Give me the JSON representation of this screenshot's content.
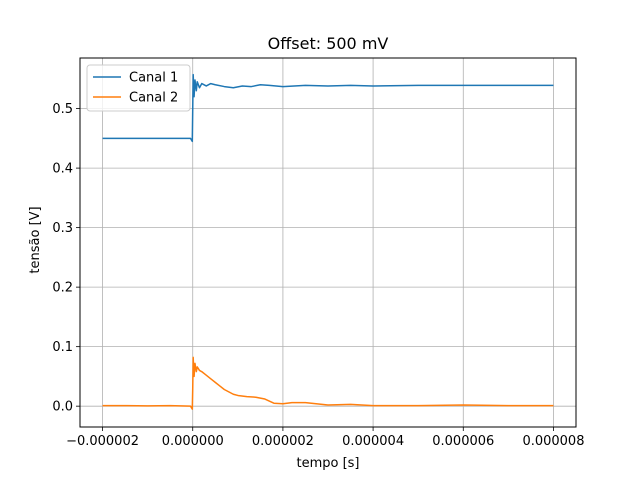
{
  "chart_data": {
    "type": "line",
    "title": "Offset: 500 mV",
    "xlabel": "tempo [s]",
    "ylabel": "tensão [V]",
    "xlim": [
      -2.5e-06,
      8.5e-06
    ],
    "ylim": [
      -0.035,
      0.585
    ],
    "xticks": [
      -2e-06,
      0.0,
      2e-06,
      4e-06,
      6e-06,
      8e-06
    ],
    "xtick_labels": [
      "−0.000002",
      "0.000000",
      "0.000002",
      "0.000004",
      "0.000006",
      "0.000008"
    ],
    "yticks": [
      0.0,
      0.1,
      0.2,
      0.3,
      0.4,
      0.5
    ],
    "ytick_labels": [
      "0.0",
      "0.1",
      "0.2",
      "0.3",
      "0.4",
      "0.5"
    ],
    "grid": true,
    "legend_position": "top-left",
    "series": [
      {
        "name": "Canal 1",
        "color": "#1f77b4",
        "x": [
          -2e-06,
          -1.5e-06,
          -1e-06,
          -5e-07,
          -5e-08,
          -1e-08,
          0.0,
          1e-08,
          3e-08,
          5e-08,
          8e-08,
          1e-07,
          1.5e-07,
          2e-07,
          3e-07,
          4e-07,
          5e-07,
          7e-07,
          9e-07,
          1.1e-06,
          1.3e-06,
          1.5e-06,
          1.7e-06,
          2e-06,
          2.5e-06,
          3e-06,
          3.5e-06,
          4e-06,
          5e-06,
          6e-06,
          7e-06,
          8e-06
        ],
        "y": [
          0.45,
          0.45,
          0.45,
          0.45,
          0.45,
          0.445,
          0.5,
          0.557,
          0.52,
          0.548,
          0.53,
          0.545,
          0.535,
          0.542,
          0.538,
          0.542,
          0.54,
          0.537,
          0.535,
          0.538,
          0.537,
          0.54,
          0.539,
          0.537,
          0.539,
          0.538,
          0.539,
          0.538,
          0.539,
          0.539,
          0.539,
          0.539
        ]
      },
      {
        "name": "Canal 2",
        "color": "#ff7f0e",
        "x": [
          -2e-06,
          -1.5e-06,
          -1e-06,
          -5e-07,
          -5e-08,
          -1e-08,
          0.0,
          1e-08,
          3e-08,
          5e-08,
          8e-08,
          1e-07,
          1.5e-07,
          2e-07,
          3e-07,
          4e-07,
          5e-07,
          6e-07,
          7e-07,
          8e-07,
          9e-07,
          1e-06,
          1.2e-06,
          1.4e-06,
          1.6e-06,
          1.8e-06,
          2e-06,
          2.2e-06,
          2.5e-06,
          3e-06,
          3.5e-06,
          4e-06,
          5e-06,
          6e-06,
          7e-06,
          8e-06
        ],
        "y": [
          0.001,
          0.001,
          0.0005,
          0.001,
          0.0,
          -0.005,
          0.03,
          0.082,
          0.05,
          0.072,
          0.058,
          0.066,
          0.06,
          0.058,
          0.052,
          0.046,
          0.04,
          0.034,
          0.028,
          0.024,
          0.02,
          0.018,
          0.016,
          0.015,
          0.012,
          0.005,
          0.004,
          0.006,
          0.006,
          0.002,
          0.003,
          0.001,
          0.001,
          0.002,
          0.001,
          0.001
        ]
      }
    ]
  }
}
